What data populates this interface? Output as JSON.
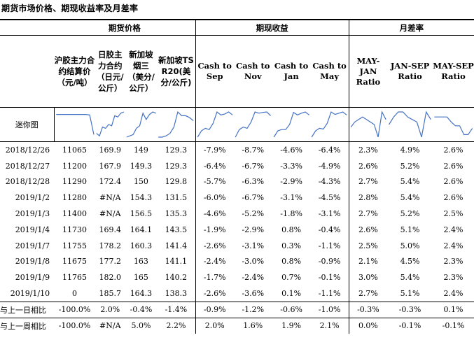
{
  "title": "期货市场价格、期现收益率及月差率",
  "groups": {
    "futures": "期货价格",
    "basis": "期现收益",
    "spread": "月差率"
  },
  "columns": [
    "沪胶主力合约结算价（元/吨）",
    "日胶主力合约（日元/公斤）",
    "新加坡烟三（美分/公斤）",
    "新加坡TSR20(美分/公斤)",
    "Cash to Sep",
    "Cash to Nov",
    "Cash to Jan",
    "Cash to May",
    "MAY-JAN Ratio",
    "JAN-SEP Ratio",
    "MAY-SEP Ratio"
  ],
  "spark_label": "迷你图",
  "rows": [
    {
      "date": "2018/12/26",
      "v": [
        "11065",
        "169.9",
        "149",
        "129.3",
        "-7.9%",
        "-8.7%",
        "-4.6%",
        "-6.4%",
        "2.3%",
        "4.9%",
        "2.6%"
      ]
    },
    {
      "date": "2018/12/27",
      "v": [
        "11200",
        "167.9",
        "149.3",
        "129.3",
        "-6.4%",
        "-6.7%",
        "-3.3%",
        "-4.9%",
        "2.6%",
        "5.2%",
        "2.6%"
      ]
    },
    {
      "date": "2018/12/28",
      "v": [
        "11290",
        "172.4",
        "150",
        "129.8",
        "-5.7%",
        "-6.3%",
        "-2.9%",
        "-4.3%",
        "2.7%",
        "5.4%",
        "2.6%"
      ]
    },
    {
      "date": "2019/1/2",
      "v": [
        "11280",
        "#N/A",
        "154.3",
        "131.5",
        "-6.0%",
        "-6.7%",
        "-3.1%",
        "-4.5%",
        "2.8%",
        "5.4%",
        "2.6%"
      ]
    },
    {
      "date": "2019/1/3",
      "v": [
        "11400",
        "#N/A",
        "156.5",
        "135.3",
        "-4.6%",
        "-5.2%",
        "-1.8%",
        "-3.1%",
        "2.7%",
        "5.2%",
        "2.5%"
      ]
    },
    {
      "date": "2019/1/4",
      "v": [
        "11730",
        "169.4",
        "164.1",
        "143.5",
        "-1.9%",
        "-2.9%",
        "0.8%",
        "-0.4%",
        "2.6%",
        "5.1%",
        "2.4%"
      ]
    },
    {
      "date": "2019/1/7",
      "v": [
        "11755",
        "178.2",
        "160.3",
        "141.4",
        "-2.6%",
        "-3.1%",
        "0.3%",
        "-1.1%",
        "2.5%",
        "5.0%",
        "2.4%"
      ]
    },
    {
      "date": "2019/1/8",
      "v": [
        "11675",
        "177.2",
        "163",
        "141.1",
        "-2.4%",
        "-3.0%",
        "0.8%",
        "-0.9%",
        "2.1%",
        "4.5%",
        "2.3%"
      ]
    },
    {
      "date": "2019/1/9",
      "v": [
        "11765",
        "182.0",
        "165",
        "140.2",
        "-1.7%",
        "-2.4%",
        "0.7%",
        "-0.1%",
        "3.0%",
        "5.4%",
        "2.3%"
      ]
    },
    {
      "date": "2019/1/10",
      "v": [
        "0",
        "185.7",
        "164.3",
        "138.3",
        "-2.6%",
        "-3.6%",
        "0.1%",
        "-1.1%",
        "2.7%",
        "5.1%",
        "2.4%"
      ]
    }
  ],
  "compare": [
    {
      "label": "与上一日相比",
      "v": [
        "-100.0%",
        "2.0%",
        "-0.4%",
        "-1.4%",
        "-0.9%",
        "-1.2%",
        "-0.6%",
        "-1.0%",
        "-0.3%",
        "-0.3%",
        "0.1%"
      ]
    },
    {
      "label": "与上一周相比",
      "v": [
        "-100.0%",
        "#N/A",
        "5.0%",
        "2.2%",
        "2.0%",
        "1.6%",
        "1.9%",
        "2.1%",
        "0.0%",
        "-0.1%",
        "-0.1%"
      ]
    }
  ],
  "sparklines": [
    [
      0.9,
      0.9,
      0.9,
      0.9,
      0.9,
      0.9,
      0.9,
      0.9,
      0.88,
      0.1
    ],
    [
      0.15,
      0.05,
      0.4,
      0.35,
      0.5,
      0.45,
      0.85,
      0.8,
      0.95,
      1.0
    ],
    [
      0.0,
      0.05,
      0.1,
      0.35,
      0.45,
      0.95,
      0.7,
      0.9,
      1.0,
      0.95
    ],
    [
      0.0,
      0.0,
      0.05,
      0.15,
      0.4,
      1.0,
      0.85,
      0.85,
      0.78,
      0.65
    ],
    [
      0.0,
      0.25,
      0.35,
      0.3,
      0.55,
      1.0,
      0.88,
      0.92,
      1.0,
      0.88
    ],
    [
      0.0,
      0.3,
      0.4,
      0.35,
      0.6,
      1.0,
      0.95,
      0.98,
      1.0,
      0.85
    ],
    [
      0.0,
      0.25,
      0.3,
      0.3,
      0.5,
      0.98,
      0.88,
      0.95,
      1.0,
      0.88
    ],
    [
      0.0,
      0.25,
      0.35,
      0.32,
      0.55,
      1.0,
      0.9,
      0.95,
      1.0,
      0.88
    ],
    [
      0.4,
      0.6,
      0.7,
      0.8,
      0.7,
      0.6,
      0.5,
      0.0,
      1.0,
      0.7
    ],
    [
      0.5,
      0.8,
      1.0,
      1.0,
      0.8,
      0.7,
      0.6,
      0.0,
      1.0,
      0.7
    ],
    [
      0.8,
      0.8,
      0.8,
      0.8,
      0.6,
      0.45,
      0.45,
      0.1,
      0.1,
      0.35
    ]
  ]
}
